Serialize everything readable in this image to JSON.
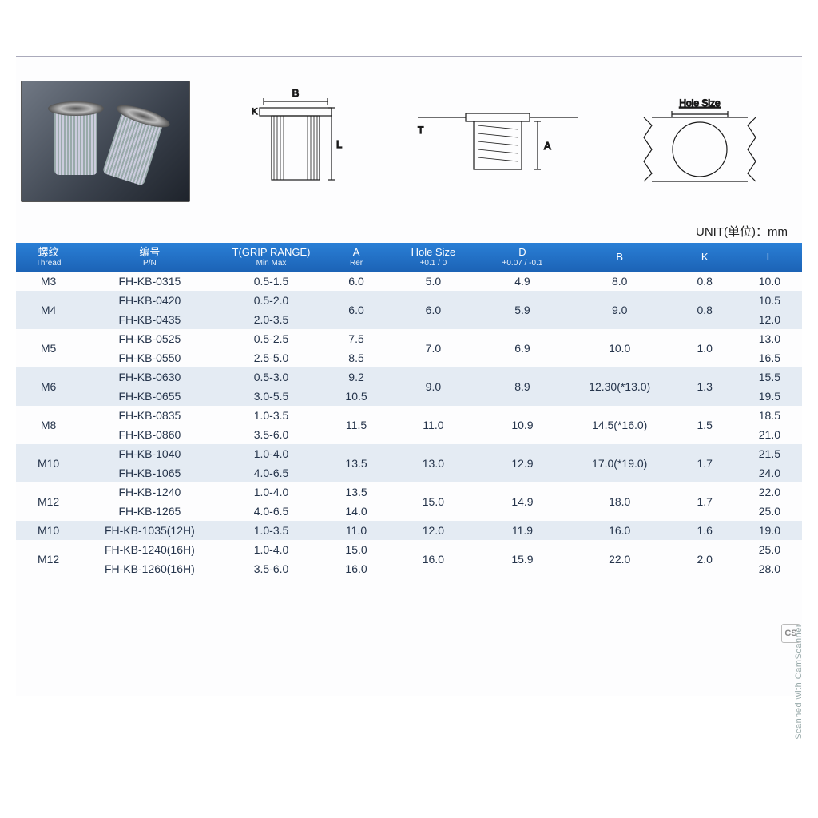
{
  "unit_label": "UNIT(单位)：mm",
  "diagram_labels": {
    "b": "B",
    "l": "L",
    "k": "K",
    "a": "A",
    "t": "T",
    "hole": "Hole Size"
  },
  "watermark": "Scanned with CamScanner",
  "cs_badge": "CS",
  "table": {
    "header_bg": "#1f6cc0",
    "row_stripe": "#e4ebf3",
    "columns": [
      {
        "line1": "螺纹",
        "line2": "Thread"
      },
      {
        "line1": "编号",
        "line2": "P/N"
      },
      {
        "line1": "T(GRIP RANGE)",
        "line2": "Min Max"
      },
      {
        "line1": "A",
        "line2": "Rer"
      },
      {
        "line1": "Hole Size",
        "line2": "+0.1 / 0"
      },
      {
        "line1": "D",
        "line2": "+0.07 / -0.1"
      },
      {
        "line1": "B",
        "line2": ""
      },
      {
        "line1": "K",
        "line2": ""
      },
      {
        "line1": "L",
        "line2": ""
      }
    ],
    "groups": [
      {
        "stripe": false,
        "thread": "M3",
        "rows": [
          {
            "pn": "FH-KB-0315",
            "t": "0.5-1.5",
            "a": "6.0",
            "l": "10.0"
          }
        ],
        "hole": "5.0",
        "d": "4.9",
        "b": "8.0",
        "k": "0.8"
      },
      {
        "stripe": true,
        "thread": "M4",
        "rows": [
          {
            "pn": "FH-KB-0420",
            "t": "0.5-2.0",
            "a": "6.0",
            "l": "10.5"
          },
          {
            "pn": "FH-KB-0435",
            "t": "2.0-3.5",
            "a": "",
            "l": "12.0"
          }
        ],
        "a_merged": "6.0",
        "hole": "6.0",
        "d": "5.9",
        "b": "9.0",
        "k": "0.8"
      },
      {
        "stripe": false,
        "thread": "M5",
        "rows": [
          {
            "pn": "FH-KB-0525",
            "t": "0.5-2.5",
            "a": "7.5",
            "l": "13.0"
          },
          {
            "pn": "FH-KB-0550",
            "t": "2.5-5.0",
            "a": "8.5",
            "l": "16.5"
          }
        ],
        "hole": "7.0",
        "d": "6.9",
        "b": "10.0",
        "k": "1.0"
      },
      {
        "stripe": true,
        "thread": "M6",
        "rows": [
          {
            "pn": "FH-KB-0630",
            "t": "0.5-3.0",
            "a": "9.2",
            "l": "15.5"
          },
          {
            "pn": "FH-KB-0655",
            "t": "3.0-5.5",
            "a": "10.5",
            "l": "19.5"
          }
        ],
        "hole": "9.0",
        "d": "8.9",
        "b": "12.30(*13.0)",
        "k": "1.3"
      },
      {
        "stripe": false,
        "thread": "M8",
        "rows": [
          {
            "pn": "FH-KB-0835",
            "t": "1.0-3.5",
            "a": "11.5",
            "l": "18.5"
          },
          {
            "pn": "FH-KB-0860",
            "t": "3.5-6.0",
            "a": "",
            "l": "21.0"
          }
        ],
        "a_merged": "11.5",
        "hole": "11.0",
        "d": "10.9",
        "b": "14.5(*16.0)",
        "k": "1.5"
      },
      {
        "stripe": true,
        "thread": "M10",
        "rows": [
          {
            "pn": "FH-KB-1040",
            "t": "1.0-4.0",
            "a": "13.5",
            "l": "21.5"
          },
          {
            "pn": "FH-KB-1065",
            "t": "4.0-6.5",
            "a": "",
            "l": "24.0"
          }
        ],
        "a_merged": "13.5",
        "hole": "13.0",
        "d": "12.9",
        "b": "17.0(*19.0)",
        "k": "1.7"
      },
      {
        "stripe": false,
        "thread": "M12",
        "rows": [
          {
            "pn": "FH-KB-1240",
            "t": "1.0-4.0",
            "a": "13.5",
            "l": "22.0"
          },
          {
            "pn": "FH-KB-1265",
            "t": "4.0-6.5",
            "a": "14.0",
            "l": "25.0"
          }
        ],
        "hole": "15.0",
        "d": "14.9",
        "b": "18.0",
        "k": "1.7"
      },
      {
        "stripe": true,
        "thread": "M10",
        "rows": [
          {
            "pn": "FH-KB-1035(12H)",
            "t": "1.0-3.5",
            "a": "11.0",
            "l": "19.0"
          }
        ],
        "hole": "12.0",
        "d": "11.9",
        "b": "16.0",
        "k": "1.6"
      },
      {
        "stripe": false,
        "thread": "M12",
        "rows": [
          {
            "pn": "FH-KB-1240(16H)",
            "t": "1.0-4.0",
            "a": "15.0",
            "l": "25.0"
          },
          {
            "pn": "FH-KB-1260(16H)",
            "t": "3.5-6.0",
            "a": "16.0",
            "l": "28.0"
          }
        ],
        "hole": "16.0",
        "d": "15.9",
        "b": "22.0",
        "k": "2.0"
      }
    ],
    "col_widths_pct": [
      8,
      17,
      13,
      8,
      11,
      11,
      13,
      8,
      8
    ]
  }
}
